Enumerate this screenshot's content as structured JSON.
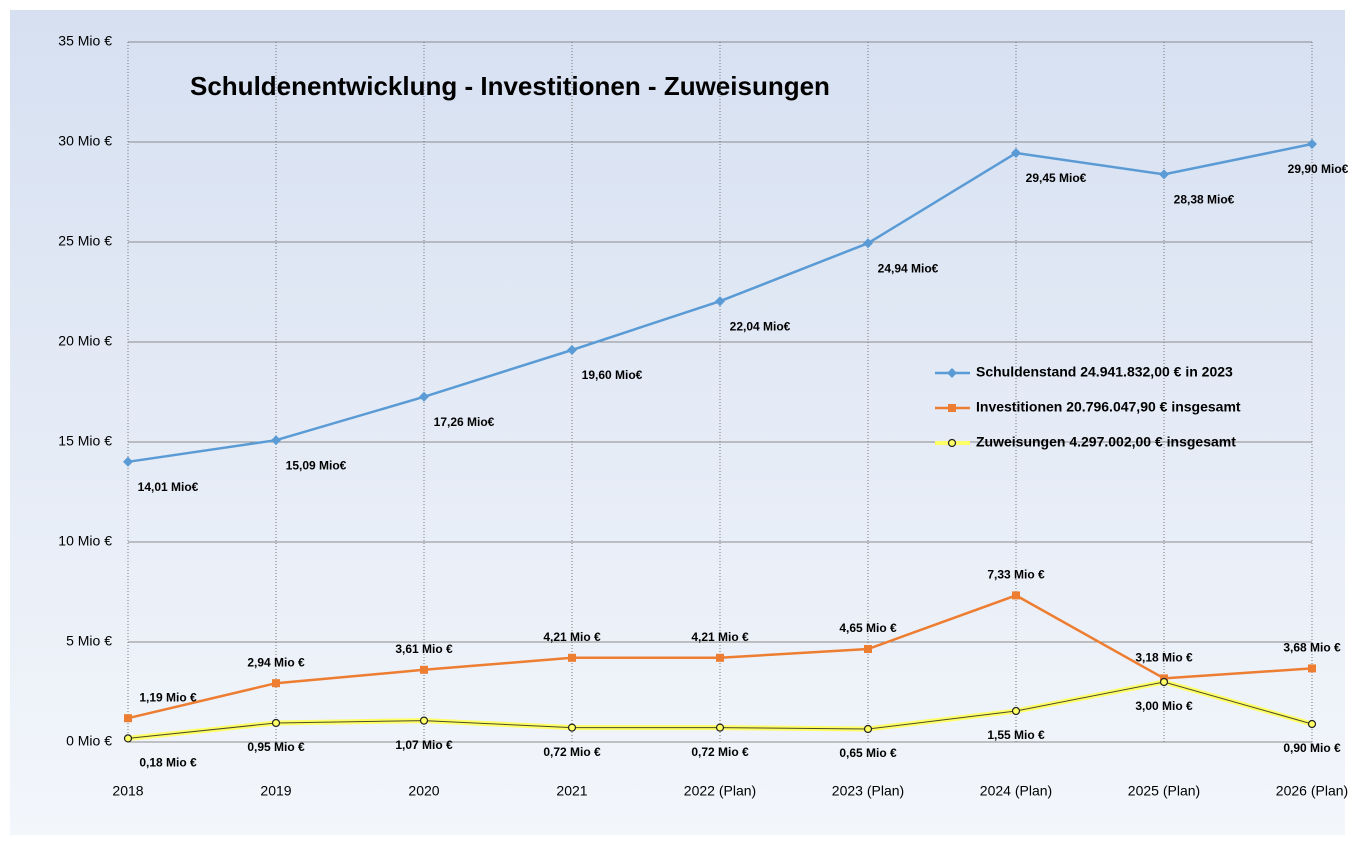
{
  "chart_data": {
    "type": "line",
    "title": "Schuldenentwicklung - Investitionen - Zuweisungen",
    "categories": [
      "2018",
      "2019",
      "2020",
      "2021",
      "2022 (Plan)",
      "2023 (Plan)",
      "2024 (Plan)",
      "2025 (Plan)",
      "2026 (Plan)"
    ],
    "ylim": [
      0,
      35
    ],
    "yticks": [
      {
        "value": 0,
        "label": "0 Mio €"
      },
      {
        "value": 5,
        "label": "5 Mio €"
      },
      {
        "value": 10,
        "label": "10 Mio €"
      },
      {
        "value": 15,
        "label": "15 Mio €"
      },
      {
        "value": 20,
        "label": "20 Mio €"
      },
      {
        "value": 25,
        "label": "25 Mio €"
      },
      {
        "value": 30,
        "label": "30 Mio €"
      },
      {
        "value": 35,
        "label": "35 Mio €"
      }
    ],
    "grid": true,
    "series": [
      {
        "name": "Schuldenstand  24.941.832,00 € in 2023",
        "color": "#5b9bd5",
        "marker": "diamond",
        "values": [
          14.01,
          15.09,
          17.26,
          19.6,
          22.04,
          24.94,
          29.45,
          28.38,
          29.9
        ],
        "value_labels": [
          "14,01 Mio€",
          "15,09 Mio€",
          "17,26 Mio€",
          "19,60 Mio€",
          "22,04 Mio€",
          "24,94 Mio€",
          "29,45 Mio€",
          "28,38 Mio€",
          "29,90 Mio€"
        ]
      },
      {
        "name": "Investitionen 20.796.047,90 € insgesamt",
        "color": "#ed7d31",
        "marker": "square",
        "values": [
          1.19,
          2.94,
          3.61,
          4.21,
          4.21,
          4.65,
          7.33,
          3.18,
          3.68
        ],
        "value_labels": [
          "1,19 Mio €",
          "2,94 Mio €",
          "3,61 Mio €",
          "4,21 Mio €",
          "4,21 Mio €",
          "4,65 Mio €",
          "7,33 Mio €",
          "3,18 Mio €",
          "3,68 Mio €"
        ]
      },
      {
        "name": "Zuweisungen 4.297.002,00 € insgesamt",
        "color": "#ffff66",
        "marker": "circle",
        "values": [
          0.18,
          0.95,
          1.07,
          0.72,
          0.72,
          0.65,
          1.55,
          3.0,
          0.9
        ],
        "value_labels": [
          "0,18 Mio €",
          "0,95 Mio €",
          "1,07 Mio €",
          "0,72 Mio €",
          "0,72 Mio €",
          "0,65 Mio €",
          "1,55 Mio €",
          "3,00 Mio €",
          "0,90 Mio €"
        ]
      }
    ]
  }
}
